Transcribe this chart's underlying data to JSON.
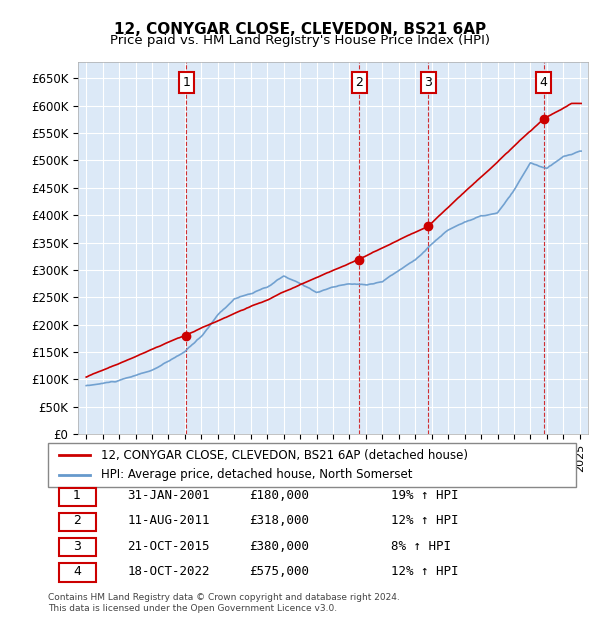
{
  "title": "12, CONYGAR CLOSE, CLEVEDON, BS21 6AP",
  "subtitle": "Price paid vs. HM Land Registry's House Price Index (HPI)",
  "xlim_start": 1994.5,
  "xlim_end": 2025.5,
  "ylim": [
    0,
    680000
  ],
  "yticks": [
    0,
    50000,
    100000,
    150000,
    200000,
    250000,
    300000,
    350000,
    400000,
    450000,
    500000,
    550000,
    600000,
    650000
  ],
  "ytick_labels": [
    "£0",
    "£50K",
    "£100K",
    "£150K",
    "£200K",
    "£250K",
    "£300K",
    "£350K",
    "£400K",
    "£450K",
    "£500K",
    "£550K",
    "£600K",
    "£650K"
  ],
  "background_color": "#dce9f7",
  "plot_bg_color": "#dce9f7",
  "hpi_line_color": "#6699cc",
  "sale_line_color": "#cc0000",
  "sale_dot_color": "#cc0000",
  "annotation_box_color": "#cc0000",
  "sales": [
    {
      "date": 2001.08,
      "price": 180000,
      "label": "1"
    },
    {
      "date": 2011.61,
      "price": 318000,
      "label": "2"
    },
    {
      "date": 2015.8,
      "price": 380000,
      "label": "3"
    },
    {
      "date": 2022.8,
      "price": 575000,
      "label": "4"
    }
  ],
  "legend_entries": [
    "12, CONYGAR CLOSE, CLEVEDON, BS21 6AP (detached house)",
    "HPI: Average price, detached house, North Somerset"
  ],
  "table_rows": [
    [
      "1",
      "31-JAN-2001",
      "£180,000",
      "19% ↑ HPI"
    ],
    [
      "2",
      "11-AUG-2011",
      "£318,000",
      "12% ↑ HPI"
    ],
    [
      "3",
      "21-OCT-2015",
      "£380,000",
      "8% ↑ HPI"
    ],
    [
      "4",
      "18-OCT-2022",
      "£575,000",
      "12% ↑ HPI"
    ]
  ],
  "footer": "Contains HM Land Registry data © Crown copyright and database right 2024.\nThis data is licensed under the Open Government Licence v3.0."
}
